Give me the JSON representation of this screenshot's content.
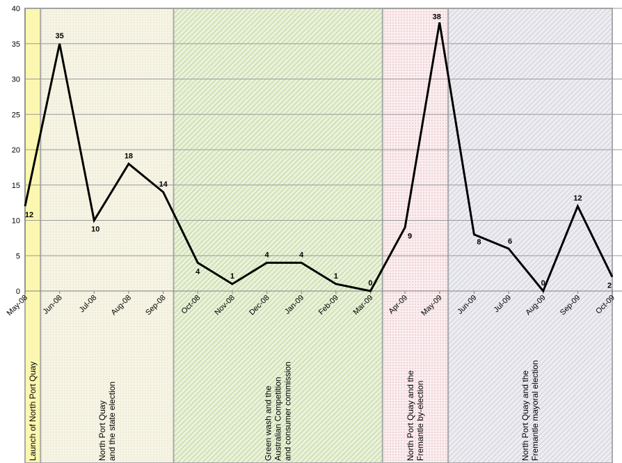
{
  "chart_data": {
    "type": "line",
    "categories": [
      "May-08",
      "Jun-08",
      "Jul-08",
      "Aug-08",
      "Sep-08",
      "Oct-08",
      "Nov-08",
      "Dec-08",
      "Jan-09",
      "Feb-09",
      "Mar-09",
      "Apr-09",
      "May-09",
      "Jun-09",
      "Jul-09",
      "Aug-09",
      "Sep-09",
      "Oct-09"
    ],
    "values": [
      12,
      35,
      10,
      18,
      14,
      4,
      1,
      4,
      4,
      1,
      0,
      9,
      38,
      8,
      6,
      0,
      12,
      2
    ],
    "ylim": [
      0,
      40
    ],
    "yticks": [
      "0",
      "5",
      "10",
      "15",
      "20",
      "25",
      "30",
      "35",
      "40"
    ],
    "grid": true,
    "line_color": "#000000",
    "periods": [
      {
        "from": 0,
        "to": 0.45,
        "lines": [
          "Launch of North Port Quay"
        ],
        "color": "#fbf7b0",
        "pattern": "solid"
      },
      {
        "from": 0.45,
        "to": 4.3,
        "lines": [
          "North Port Quay",
          "and the state election"
        ],
        "color": "#f6f4e4",
        "pattern": "dots"
      },
      {
        "from": 4.3,
        "to": 10.35,
        "lines": [
          "Green wash and the",
          "Australian Competition",
          "and consumer commission"
        ],
        "color": "#e3edd0",
        "pattern": "diagonal"
      },
      {
        "from": 10.35,
        "to": 12.25,
        "lines": [
          "North Port Quay and the",
          "Fremantle by-election"
        ],
        "color": "#f7e4e8",
        "pattern": "reddots"
      },
      {
        "from": 12.25,
        "to": 17,
        "lines": [
          "North Port Quay and the",
          "Fremantle mayoral election"
        ],
        "color": "#e7e7ef",
        "pattern": "diagonal-grey"
      }
    ]
  }
}
